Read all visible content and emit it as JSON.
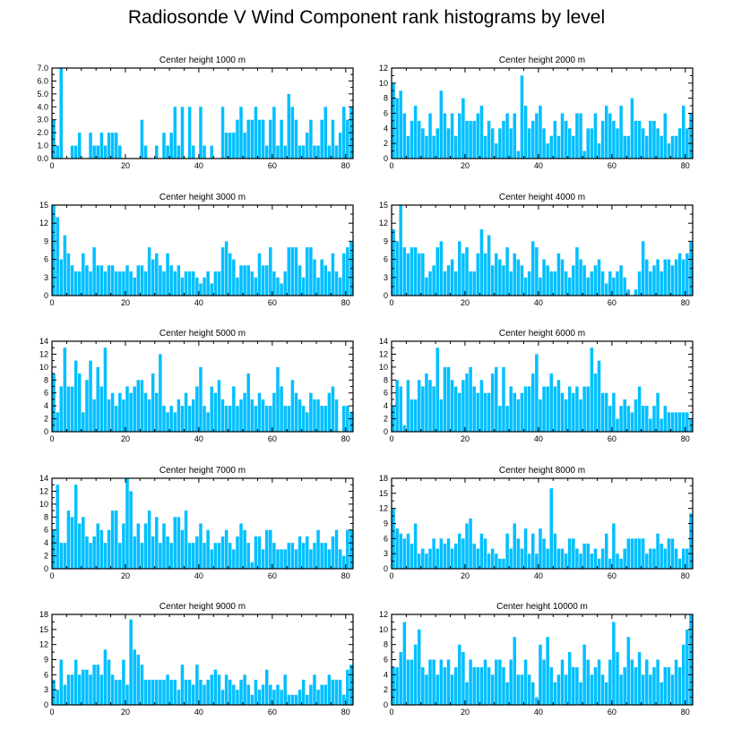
{
  "title": "Radiosonde V Wind Component rank histograms by level",
  "colors": {
    "bar": "#00bfff",
    "axis": "#000000",
    "background": "#ffffff"
  },
  "chart_data": [
    {
      "type": "bar",
      "title": "Center height 1000 m",
      "xlim": [
        0,
        82
      ],
      "ylim": [
        0,
        7
      ],
      "xticks": [
        0,
        20,
        40,
        60,
        80
      ],
      "xtick_labels": [
        "0",
        "20",
        "40",
        "60",
        "80"
      ],
      "yticks": [
        0,
        1,
        2,
        3,
        4,
        5,
        6,
        7
      ],
      "ytick_labels": [
        "0.0",
        "1.0",
        "2.0",
        "3.0",
        "4.0",
        "5.0",
        "6.0",
        "7.0"
      ],
      "values": [
        3,
        1,
        7,
        0,
        0,
        1,
        1,
        2,
        0,
        0,
        2,
        1,
        1,
        2,
        1,
        2,
        2,
        2,
        1,
        0,
        0,
        0,
        0,
        0,
        3,
        1,
        0,
        0,
        1,
        0,
        2,
        1,
        2,
        4,
        1,
        4,
        0,
        4,
        1,
        0,
        4,
        1,
        0,
        1,
        0,
        0,
        4,
        2,
        2,
        2,
        3,
        4,
        2,
        3,
        3,
        4,
        3,
        3,
        1,
        3,
        4,
        1,
        3,
        1,
        5,
        4,
        3,
        1,
        1,
        2,
        3,
        1,
        1,
        3,
        4,
        1,
        3,
        1,
        2,
        4,
        3,
        4
      ]
    },
    {
      "type": "bar",
      "title": "Center height 2000 m",
      "xlim": [
        0,
        82
      ],
      "ylim": [
        0,
        12
      ],
      "xticks": [
        0,
        20,
        40,
        60,
        80
      ],
      "xtick_labels": [
        "0",
        "20",
        "40",
        "60",
        "80"
      ],
      "yticks": [
        0,
        2,
        4,
        6,
        8,
        10,
        12
      ],
      "ytick_labels": [
        "0",
        "2",
        "4",
        "6",
        "8",
        "10",
        "12"
      ],
      "values": [
        10,
        8,
        9,
        6,
        3,
        5,
        7,
        5,
        4,
        3,
        6,
        3,
        4,
        9,
        6,
        4,
        6,
        3,
        6,
        8,
        5,
        5,
        5,
        6,
        7,
        3,
        5,
        4,
        2,
        4,
        5,
        6,
        4,
        6,
        1,
        11,
        7,
        4,
        5,
        6,
        7,
        4,
        2,
        3,
        5,
        3,
        6,
        5,
        4,
        3,
        6,
        6,
        1,
        4,
        4,
        6,
        2,
        5,
        7,
        6,
        5,
        4,
        7,
        3,
        3,
        8,
        5,
        5,
        4,
        3,
        5,
        5,
        4,
        3,
        6,
        2,
        3,
        3,
        4,
        7,
        4,
        6
      ]
    },
    {
      "type": "bar",
      "title": "Center height 3000 m",
      "xlim": [
        0,
        82
      ],
      "ylim": [
        0,
        15
      ],
      "xticks": [
        0,
        20,
        40,
        60,
        80
      ],
      "xtick_labels": [
        "0",
        "20",
        "40",
        "60",
        "80"
      ],
      "yticks": [
        0,
        3,
        6,
        9,
        12,
        15
      ],
      "ytick_labels": [
        "0",
        "3",
        "6",
        "9",
        "12",
        "15"
      ],
      "values": [
        15,
        13,
        6,
        10,
        7,
        5,
        4,
        4,
        7,
        5,
        4,
        8,
        5,
        5,
        4,
        5,
        5,
        4,
        4,
        4,
        5,
        4,
        3,
        5,
        5,
        4,
        8,
        6,
        7,
        5,
        4,
        7,
        5,
        4,
        5,
        3,
        4,
        4,
        4,
        3,
        2,
        3,
        4,
        2,
        4,
        4,
        8,
        9,
        7,
        6,
        3,
        5,
        5,
        5,
        4,
        3,
        7,
        5,
        5,
        8,
        4,
        3,
        2,
        4,
        8,
        8,
        8,
        5,
        3,
        8,
        8,
        6,
        3,
        6,
        5,
        4,
        7,
        4,
        3,
        7,
        8,
        9
      ]
    },
    {
      "type": "bar",
      "title": "Center height 4000 m",
      "xlim": [
        0,
        82
      ],
      "ylim": [
        0,
        15
      ],
      "xticks": [
        0,
        20,
        40,
        60,
        80
      ],
      "xtick_labels": [
        "0",
        "20",
        "40",
        "60",
        "80"
      ],
      "yticks": [
        0,
        3,
        6,
        9,
        12,
        15
      ],
      "ytick_labels": [
        "0",
        "3",
        "6",
        "9",
        "12",
        "15"
      ],
      "values": [
        11,
        9,
        15,
        8,
        7,
        8,
        8,
        7,
        7,
        3,
        4,
        5,
        8,
        9,
        4,
        5,
        6,
        4,
        9,
        7,
        8,
        4,
        4,
        7,
        11,
        7,
        10,
        5,
        7,
        6,
        5,
        8,
        4,
        7,
        6,
        5,
        3,
        4,
        9,
        8,
        3,
        6,
        5,
        4,
        4,
        7,
        6,
        4,
        3,
        5,
        8,
        6,
        5,
        3,
        4,
        5,
        6,
        4,
        2,
        4,
        3,
        4,
        5,
        3,
        1,
        0,
        1,
        4,
        9,
        6,
        4,
        5,
        6,
        4,
        6,
        6,
        5,
        6,
        7,
        6,
        7,
        9
      ]
    },
    {
      "type": "bar",
      "title": "Center height 5000 m",
      "xlim": [
        0,
        82
      ],
      "ylim": [
        0,
        14
      ],
      "xticks": [
        0,
        20,
        40,
        60,
        80
      ],
      "xtick_labels": [
        "0",
        "20",
        "40",
        "60",
        "80"
      ],
      "yticks": [
        0,
        2,
        4,
        6,
        8,
        10,
        12,
        14
      ],
      "ytick_labels": [
        "0",
        "2",
        "4",
        "6",
        "8",
        "10",
        "12",
        "14"
      ],
      "values": [
        9,
        3,
        7,
        13,
        7,
        7,
        11,
        9,
        3,
        8,
        11,
        5,
        10,
        7,
        13,
        5,
        6,
        4,
        6,
        5,
        7,
        6,
        7,
        8,
        8,
        6,
        5,
        9,
        6,
        12,
        4,
        3,
        4,
        3,
        5,
        4,
        6,
        4,
        5,
        7,
        10,
        4,
        3,
        7,
        6,
        8,
        5,
        4,
        4,
        7,
        4,
        5,
        6,
        9,
        5,
        4,
        6,
        5,
        4,
        4,
        6,
        10,
        7,
        4,
        4,
        8,
        6,
        5,
        4,
        3,
        6,
        5,
        5,
        4,
        4,
        6,
        7,
        5,
        0,
        4,
        4,
        3
      ]
    },
    {
      "type": "bar",
      "title": "Center height 6000 m",
      "xlim": [
        0,
        82
      ],
      "ylim": [
        0,
        14
      ],
      "xticks": [
        0,
        20,
        40,
        60,
        80
      ],
      "xtick_labels": [
        "0",
        "20",
        "40",
        "60",
        "80"
      ],
      "yticks": [
        0,
        2,
        4,
        6,
        8,
        10,
        12,
        14
      ],
      "ytick_labels": [
        "0",
        "2",
        "4",
        "6",
        "8",
        "10",
        "12",
        "14"
      ],
      "values": [
        4,
        8,
        7,
        1,
        8,
        5,
        5,
        8,
        7,
        9,
        8,
        7,
        13,
        5,
        10,
        10,
        8,
        7,
        6,
        8,
        9,
        10,
        7,
        6,
        8,
        6,
        6,
        9,
        10,
        4,
        10,
        4,
        7,
        6,
        5,
        6,
        7,
        7,
        9,
        12,
        5,
        7,
        7,
        9,
        7,
        8,
        6,
        5,
        7,
        6,
        7,
        5,
        7,
        7,
        13,
        9,
        11,
        6,
        6,
        4,
        6,
        2,
        4,
        5,
        4,
        3,
        5,
        7,
        4,
        4,
        2,
        4,
        6,
        2,
        4,
        3,
        3,
        3,
        3,
        3,
        3,
        2
      ]
    },
    {
      "type": "bar",
      "title": "Center height 7000 m",
      "xlim": [
        0,
        82
      ],
      "ylim": [
        0,
        14
      ],
      "xticks": [
        0,
        20,
        40,
        60,
        80
      ],
      "xtick_labels": [
        "0",
        "20",
        "40",
        "60",
        "80"
      ],
      "yticks": [
        0,
        2,
        4,
        6,
        8,
        10,
        12,
        14
      ],
      "ytick_labels": [
        "0",
        "2",
        "4",
        "6",
        "8",
        "10",
        "12",
        "14"
      ],
      "values": [
        6,
        13,
        4,
        4,
        9,
        8,
        13,
        7,
        8,
        5,
        4,
        5,
        7,
        6,
        4,
        6,
        9,
        9,
        4,
        7,
        14,
        12,
        5,
        7,
        4,
        7,
        9,
        5,
        8,
        4,
        7,
        5,
        4,
        8,
        8,
        6,
        9,
        4,
        4,
        5,
        7,
        4,
        6,
        3,
        4,
        4,
        5,
        6,
        4,
        3,
        5,
        7,
        6,
        4,
        1,
        5,
        5,
        3,
        6,
        6,
        4,
        3,
        3,
        3,
        4,
        4,
        3,
        5,
        4,
        5,
        3,
        4,
        6,
        4,
        4,
        3,
        5,
        6,
        3,
        2,
        6,
        6
      ]
    },
    {
      "type": "bar",
      "title": "Center height 8000 m",
      "xlim": [
        0,
        82
      ],
      "ylim": [
        0,
        18
      ],
      "xticks": [
        0,
        20,
        40,
        60,
        80
      ],
      "xtick_labels": [
        "0",
        "20",
        "40",
        "60",
        "80"
      ],
      "yticks": [
        0,
        3,
        6,
        9,
        12,
        15,
        18
      ],
      "ytick_labels": [
        "0",
        "3",
        "6",
        "9",
        "12",
        "15",
        "18"
      ],
      "values": [
        12,
        8,
        7,
        6,
        7,
        5,
        9,
        3,
        4,
        3,
        4,
        6,
        4,
        6,
        5,
        6,
        4,
        5,
        7,
        6,
        9,
        10,
        5,
        4,
        7,
        6,
        3,
        4,
        3,
        2,
        2,
        7,
        4,
        9,
        6,
        4,
        8,
        3,
        7,
        3,
        8,
        6,
        4,
        16,
        7,
        4,
        4,
        3,
        6,
        6,
        4,
        3,
        5,
        5,
        3,
        4,
        2,
        4,
        7,
        2,
        9,
        3,
        2,
        4,
        6,
        6,
        6,
        6,
        6,
        3,
        4,
        4,
        7,
        5,
        4,
        6,
        6,
        4,
        2,
        4,
        4,
        11
      ]
    },
    {
      "type": "bar",
      "title": "Center height 9000 m",
      "xlim": [
        0,
        82
      ],
      "ylim": [
        0,
        18
      ],
      "xticks": [
        0,
        20,
        40,
        60,
        80
      ],
      "xtick_labels": [
        "0",
        "20",
        "40",
        "60",
        "80"
      ],
      "yticks": [
        0,
        3,
        6,
        9,
        12,
        15,
        18
      ],
      "ytick_labels": [
        "0",
        "3",
        "6",
        "9",
        "12",
        "15",
        "18"
      ],
      "values": [
        5,
        3,
        9,
        4,
        6,
        6,
        9,
        6,
        7,
        7,
        6,
        8,
        8,
        6,
        11,
        9,
        6,
        5,
        5,
        9,
        4,
        17,
        11,
        10,
        8,
        5,
        5,
        5,
        5,
        5,
        5,
        6,
        5,
        5,
        3,
        8,
        5,
        5,
        4,
        8,
        5,
        4,
        5,
        6,
        7,
        6,
        3,
        6,
        5,
        4,
        3,
        5,
        6,
        4,
        2,
        5,
        3,
        4,
        7,
        4,
        3,
        4,
        3,
        6,
        2,
        2,
        2,
        3,
        5,
        2,
        4,
        6,
        3,
        4,
        4,
        6,
        5,
        5,
        5,
        2,
        7,
        8
      ]
    },
    {
      "type": "bar",
      "title": "Center height 10000 m",
      "xlim": [
        0,
        82
      ],
      "ylim": [
        0,
        12
      ],
      "xticks": [
        0,
        20,
        40,
        60,
        80
      ],
      "xtick_labels": [
        "0",
        "20",
        "40",
        "60",
        "80"
      ],
      "yticks": [
        0,
        2,
        4,
        6,
        8,
        10,
        12
      ],
      "ytick_labels": [
        "0",
        "2",
        "4",
        "6",
        "8",
        "10",
        "12"
      ],
      "values": [
        5,
        5,
        7,
        11,
        6,
        6,
        8,
        10,
        5,
        4,
        6,
        6,
        4,
        6,
        5,
        6,
        4,
        5,
        8,
        7,
        3,
        6,
        5,
        5,
        5,
        6,
        5,
        4,
        6,
        6,
        5,
        3,
        6,
        9,
        4,
        4,
        6,
        4,
        3,
        1,
        8,
        6,
        9,
        5,
        3,
        4,
        6,
        4,
        7,
        5,
        5,
        3,
        8,
        6,
        4,
        5,
        6,
        4,
        3,
        6,
        11,
        7,
        4,
        5,
        9,
        6,
        5,
        7,
        4,
        6,
        4,
        5,
        6,
        3,
        5,
        5,
        4,
        6,
        5,
        8,
        10,
        12
      ]
    }
  ]
}
